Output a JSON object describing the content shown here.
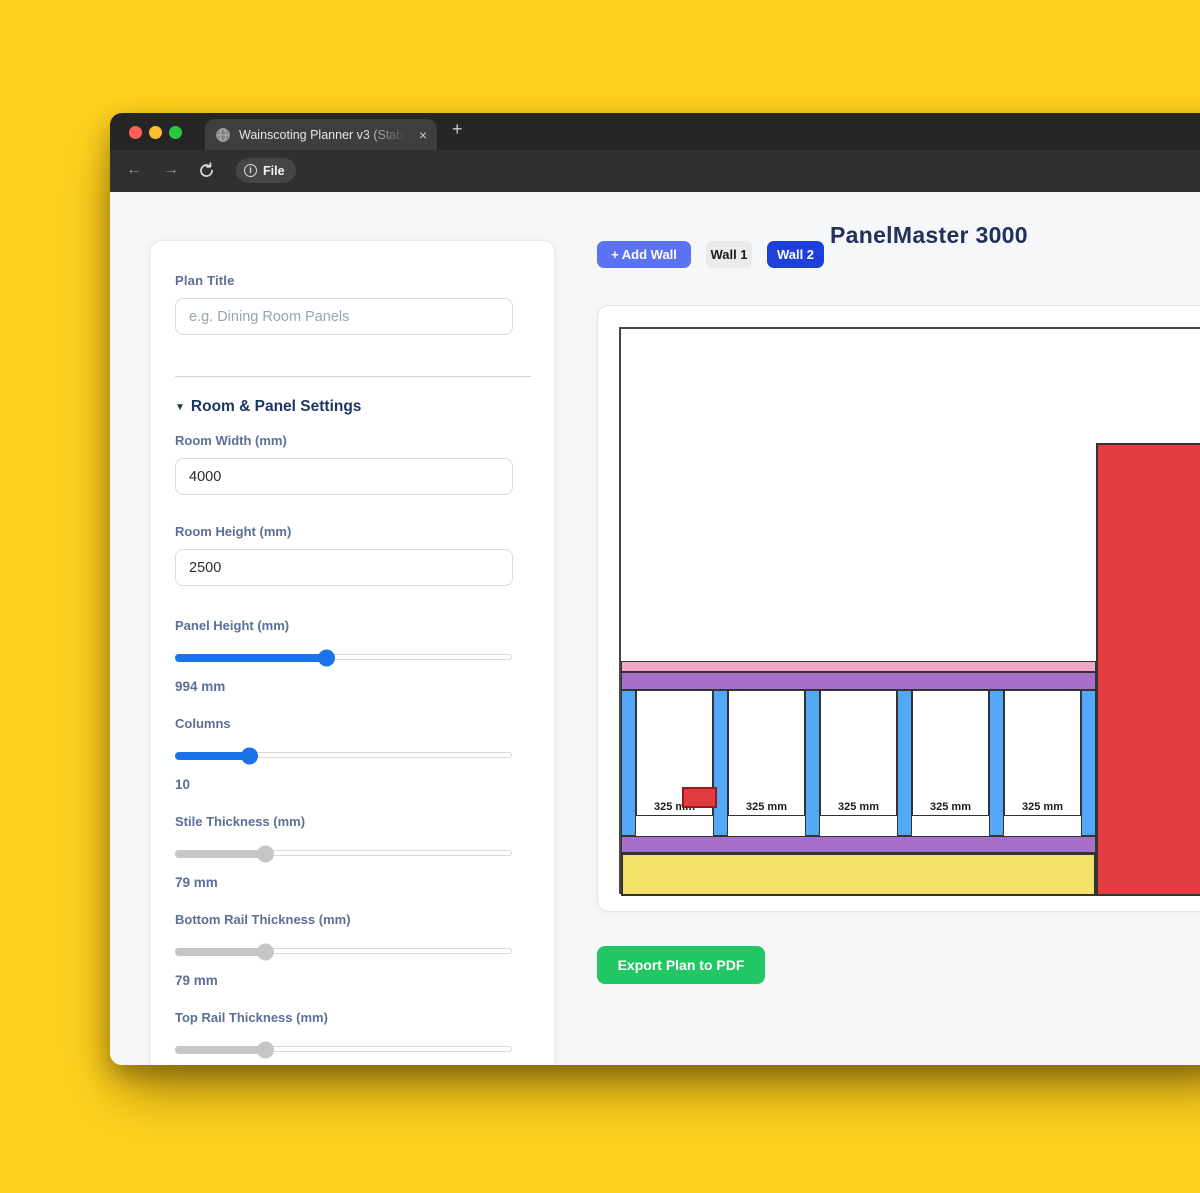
{
  "browser": {
    "tab_title": "Wainscoting Planner v3 (Stab",
    "address_label": "File",
    "icons": {
      "tab_close": "×",
      "new_tab": "+",
      "back": "←",
      "forward": "→",
      "info": "i",
      "caret_down": "▼"
    }
  },
  "sidebar": {
    "plan_title": {
      "label": "Plan Title",
      "placeholder": "e.g. Dining Room Panels"
    },
    "section": {
      "title": "Room & Panel Settings"
    },
    "room_width": {
      "label": "Room Width (mm)",
      "value": "4000"
    },
    "room_height": {
      "label": "Room Height (mm)",
      "value": "2500"
    },
    "sliders": {
      "panel_height": {
        "label": "Panel Height (mm)",
        "value": "994 mm",
        "percent": 45
      },
      "columns": {
        "label": "Columns",
        "value": "10",
        "percent": 22
      },
      "stile": {
        "label": "Stile Thickness (mm)",
        "value": "79 mm",
        "percent": 27
      },
      "bottom_rail": {
        "label": "Bottom Rail Thickness (mm)",
        "value": "79 mm",
        "percent": 27
      },
      "top_rail": {
        "label": "Top Rail Thickness (mm)",
        "percent": 27
      }
    }
  },
  "main": {
    "app_title": "PanelMaster 3000",
    "add_wall_button": "+ Add Wall",
    "wall_tabs": [
      "Wall 1",
      "Wall 2"
    ],
    "active_wall": "Wall 2",
    "export_button": "Export Plan to PDF"
  },
  "diagram": {
    "panel_labels": [
      "325 mm",
      "325 mm",
      "325 mm",
      "325 mm",
      "325 mm"
    ],
    "colors": {
      "stile_blue": "#54a8f8",
      "rail_purple": "#a86fc9",
      "picture_rail_pink": "#f2a9c9",
      "skirting_yellow": "#f6e169",
      "door_red": "#e43d41",
      "obstruction_red": "#e23b3f"
    }
  }
}
